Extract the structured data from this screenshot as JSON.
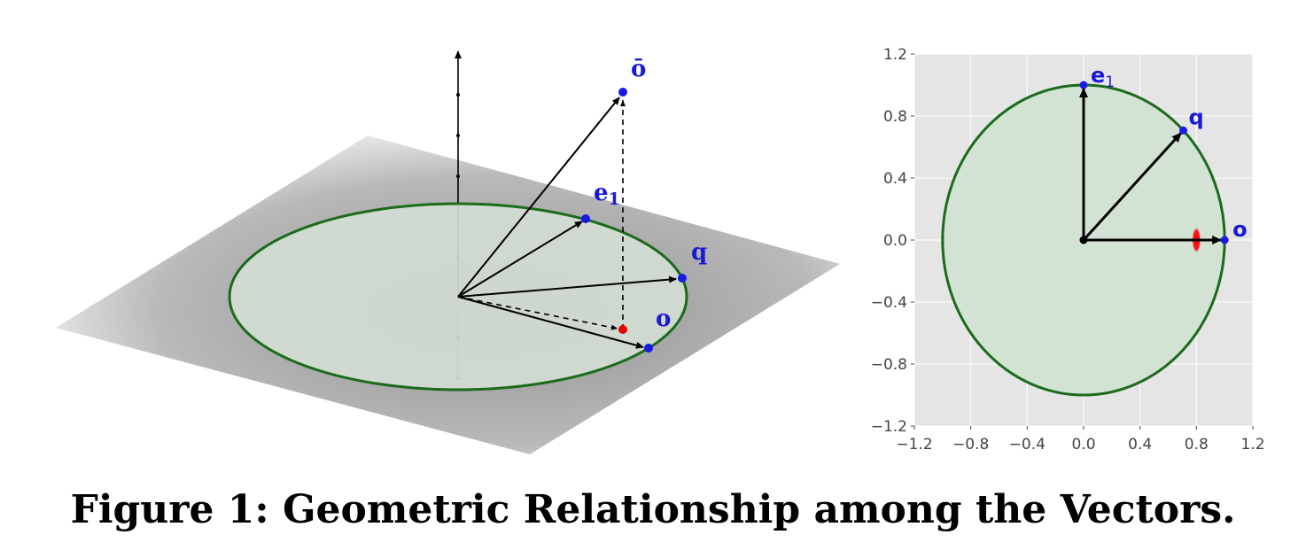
{
  "left": {
    "labels": {
      "o_bar": "ō",
      "e1_base": "e",
      "e1_sub": "1",
      "q": "q",
      "o": "o"
    }
  },
  "right": {
    "chart_data": {
      "type": "scatter",
      "xlim": [
        -1.2,
        1.2
      ],
      "ylim": [
        -1.2,
        1.2
      ],
      "grid": true,
      "x_ticks": [
        "−1.2",
        "−0.8",
        "−0.4",
        "0.0",
        "0.4",
        "0.8",
        "1.2"
      ],
      "y_ticks": [
        "1.2",
        "0.8",
        "0.4",
        "0.0",
        "−0.4",
        "−0.8",
        "−1.2"
      ],
      "circle": {
        "center": [
          0,
          0
        ],
        "radius": 1,
        "fill": "#d3e3d3",
        "stroke": "#1a6b1a"
      },
      "vectors": [
        {
          "name": "e1",
          "label_base": "e",
          "label_sub": "1",
          "x": 0.0,
          "y": 1.0
        },
        {
          "name": "q",
          "label": "q",
          "x": 0.707,
          "y": 0.707
        },
        {
          "name": "o",
          "label": "o",
          "x": 1.0,
          "y": 0.0
        }
      ],
      "red_cluster": {
        "x": 0.8,
        "y": 0.0,
        "sx": 0.03,
        "sy": 0.08
      }
    }
  },
  "caption": "Figure 1: Geometric Relationship among the Vectors."
}
